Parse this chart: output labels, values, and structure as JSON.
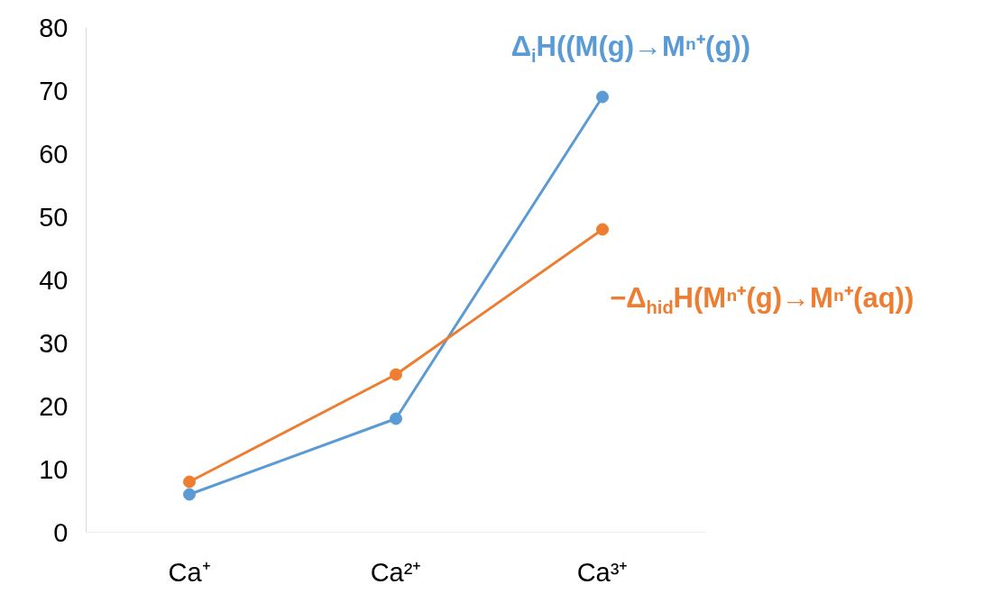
{
  "chart_data": {
    "type": "line",
    "categories": [
      "Ca⁺",
      "Ca²⁺",
      "Ca³⁺"
    ],
    "series": [
      {
        "name": "Δ$_{i}$H((M(g)→Mⁿ⁺(g))",
        "color": "#5b9bd5",
        "values": [
          6,
          18,
          69
        ]
      },
      {
        "name": "−Δ$_{hid}$H(Mⁿ⁺(g)→Mⁿ⁺(aq))",
        "color": "#ed7d31",
        "values": [
          8,
          25,
          48
        ]
      }
    ],
    "ylim": [
      0,
      80
    ],
    "yticks": [
      0,
      10,
      20,
      30,
      40,
      50,
      60,
      70,
      80
    ],
    "grid": false,
    "marker": "circle",
    "line_style": "solid"
  }
}
